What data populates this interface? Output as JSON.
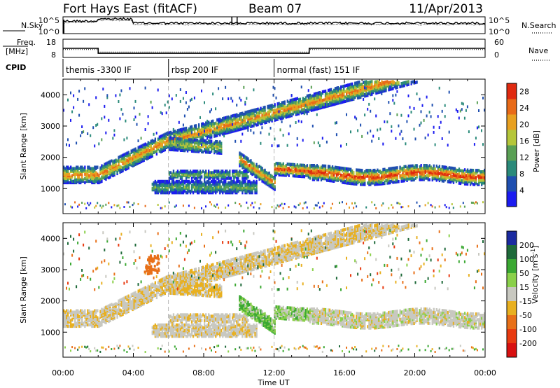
{
  "header": {
    "station": "Fort Hays East (fitACF)",
    "beam": "Beam 07",
    "date": "11/Apr/2013"
  },
  "chart_data": [
    {
      "type": "line",
      "panel": "noise",
      "ylabel_left": "N.Sky",
      "ylabel_right": "N.Search",
      "yticks_left": [
        "10^5",
        "10^0"
      ],
      "yticks_right": [
        "10^5",
        "10^0"
      ],
      "xlim": [
        0,
        24
      ]
    },
    {
      "type": "line",
      "panel": "frequency",
      "ylabel_left": "Freq.",
      "ylabel_left_unit": "[MHz]",
      "ylabel_right": "Nave",
      "yticks_left": [
        18,
        8
      ],
      "yticks_right": [
        60,
        0
      ],
      "ylim_left": [
        8,
        18
      ],
      "ylim_right": [
        0,
        60
      ],
      "freq_steps": [
        {
          "from": 0,
          "to": 2.0,
          "value": 13.0
        },
        {
          "from": 2.0,
          "to": 14.0,
          "value": 10.3
        },
        {
          "from": 14.0,
          "to": 24,
          "value": 13.0
        }
      ],
      "nave_steps": [
        {
          "from": 0,
          "to": 2.0,
          "value": 26
        },
        {
          "from": 2.0,
          "to": 14.0,
          "value": 18
        },
        {
          "from": 14.0,
          "to": 24,
          "value": 26
        }
      ]
    },
    {
      "type": "table",
      "panel": "cpid",
      "label": "CPID",
      "segments": [
        {
          "start": 0.0,
          "end": 6.0,
          "text": "themis -3300 IF"
        },
        {
          "start": 6.0,
          "end": 12.0,
          "text": "rbsp 200 IF"
        },
        {
          "start": 12.0,
          "end": 24.0,
          "text": "normal (fast) 151 IF"
        }
      ]
    },
    {
      "type": "heatmap",
      "panel": "power",
      "ylabel": "Slant Range [km]",
      "ylim": [
        200,
        4500
      ],
      "yticks": [
        1000,
        2000,
        3000,
        4000
      ],
      "xlim": [
        0,
        24
      ],
      "colorbar_label": "Power [dB]",
      "colorbar_ticks": [
        4,
        8,
        12,
        16,
        20,
        24,
        28
      ],
      "colorbar_range": [
        0,
        30
      ],
      "colorbar_colors": [
        "#1b1bf0",
        "#1f4fb0",
        "#2a8a7a",
        "#5aa055",
        "#b5c63a",
        "#e8a020",
        "#e86a18",
        "#e02a10"
      ]
    },
    {
      "type": "heatmap",
      "panel": "velocity",
      "ylabel": "Slant Range [km]",
      "ylim": [
        200,
        4500
      ],
      "yticks": [
        1000,
        2000,
        3000,
        4000
      ],
      "xlim": [
        0,
        24
      ],
      "xlabel": "Time UT",
      "xticks": [
        "00:00",
        "04:00",
        "08:00",
        "12:00",
        "16:00",
        "20:00",
        "00:00"
      ],
      "colorbar_label": "Velocity [m s",
      "colorbar_label_sup": "-1",
      "colorbar_label_end": "]",
      "colorbar_ticks": [
        200,
        100,
        50,
        15,
        -15,
        -50,
        -100,
        -200
      ],
      "colorbar_colors": [
        "#1a2aa0",
        "#1e6a3a",
        "#3aa832",
        "#8ad04a",
        "#c8c8c0",
        "#e8b020",
        "#e87018",
        "#e83a10",
        "#d81010"
      ]
    }
  ]
}
